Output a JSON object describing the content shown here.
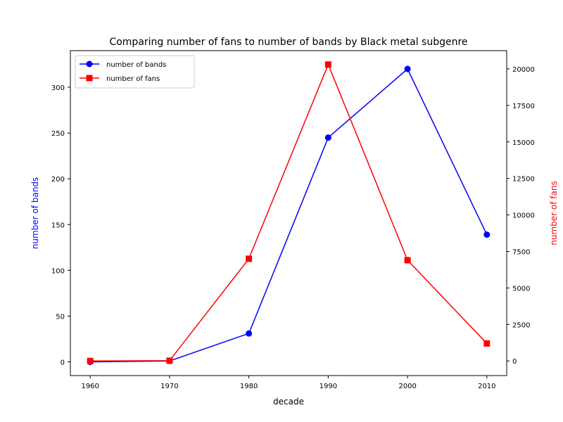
{
  "chart_data": {
    "type": "line",
    "title": "Comparing number of fans to number of bands by Black metal subgenre",
    "xlabel": "decade",
    "ylabel_left": "number of bands",
    "ylabel_right": "number of fans",
    "x": [
      1960,
      1970,
      1980,
      1990,
      2000,
      2010
    ],
    "xlim": [
      1957.5,
      2012.5
    ],
    "ylim_left": [
      -15,
      340
    ],
    "ylim_right": [
      -1000,
      21250
    ],
    "yticks_left": [
      0,
      50,
      100,
      150,
      200,
      250,
      300
    ],
    "yticks_right": [
      0,
      2500,
      5000,
      7500,
      10000,
      12500,
      15000,
      17500,
      20000
    ],
    "grid": false,
    "legend_position": "upper-left",
    "series": [
      {
        "name": "number of bands",
        "axis": "left",
        "color": "#0000ff",
        "marker": "circle",
        "values": [
          0,
          1,
          31,
          245,
          320,
          139
        ]
      },
      {
        "name": "number of fans",
        "axis": "right",
        "color": "#ff0000",
        "marker": "square",
        "values": [
          0,
          20,
          7000,
          20300,
          6900,
          1200
        ]
      }
    ]
  }
}
